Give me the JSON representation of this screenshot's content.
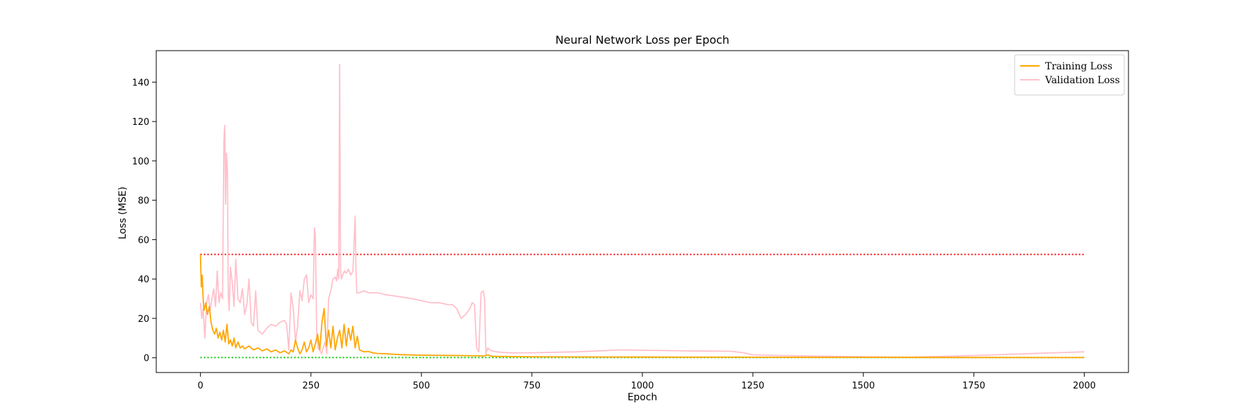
{
  "chart_data": {
    "type": "line",
    "title": "Neural Network Loss per Epoch",
    "xlabel": "Epoch",
    "ylabel": "Loss (MSE)",
    "xlim": [
      -100,
      2100
    ],
    "ylim": [
      -7.5,
      156
    ],
    "xticks": [
      0,
      250,
      500,
      750,
      1000,
      1250,
      1500,
      1750,
      2000
    ],
    "yticks": [
      0,
      20,
      40,
      60,
      80,
      100,
      120,
      140
    ],
    "grid": false,
    "legend_position": "top-right",
    "series": [
      {
        "name": "Training Loss",
        "color": "#ffa500",
        "x": [
          0,
          2,
          4,
          6,
          8,
          12,
          16,
          20,
          24,
          28,
          32,
          36,
          40,
          44,
          48,
          52,
          56,
          60,
          64,
          68,
          72,
          76,
          80,
          85,
          90,
          95,
          100,
          110,
          120,
          130,
          140,
          150,
          160,
          170,
          180,
          190,
          200,
          205,
          210,
          215,
          220,
          225,
          230,
          235,
          240,
          245,
          250,
          255,
          260,
          265,
          270,
          275,
          280,
          285,
          290,
          295,
          300,
          305,
          310,
          315,
          320,
          325,
          330,
          335,
          340,
          345,
          350,
          355,
          360,
          370,
          380,
          390,
          400,
          420,
          450,
          480,
          500,
          550,
          600,
          630,
          640,
          650,
          660,
          700,
          750,
          800,
          900,
          1000,
          1100,
          1200,
          1300,
          1400,
          1500,
          1600,
          1700,
          1800,
          1900,
          2000
        ],
        "y": [
          52.5,
          36,
          42,
          30,
          24,
          28,
          22,
          26,
          18,
          14,
          12,
          15,
          10,
          13,
          9,
          14,
          8,
          17,
          7,
          9,
          6,
          10,
          5,
          8,
          5,
          6,
          4.5,
          6,
          4,
          5,
          3.5,
          4.5,
          3,
          4,
          2.5,
          3.5,
          2,
          4,
          3,
          9,
          5,
          2,
          4,
          8,
          3,
          5,
          9,
          3,
          7,
          12,
          4,
          18,
          25,
          6,
          14,
          5,
          16,
          4,
          10,
          14,
          5,
          17,
          6,
          15,
          9,
          16,
          5,
          11,
          4,
          3,
          3.2,
          2.5,
          2.2,
          2,
          1.6,
          1.4,
          1.3,
          1.2,
          1.1,
          1.0,
          0.8,
          1.5,
          0.7,
          0.6,
          0.5,
          0.45,
          0.4,
          0.35,
          0.3,
          0.28,
          0.25,
          0.22,
          0.2,
          0.18,
          0.16,
          0.15,
          0.12,
          0.1
        ]
      },
      {
        "name": "Validation Loss",
        "color": "#ffc0cb",
        "x": [
          0,
          3,
          6,
          10,
          14,
          18,
          22,
          26,
          30,
          34,
          38,
          42,
          46,
          50,
          53,
          55,
          57,
          59,
          61,
          63,
          65,
          68,
          72,
          76,
          80,
          85,
          90,
          95,
          100,
          105,
          110,
          115,
          120,
          125,
          130,
          140,
          150,
          160,
          170,
          180,
          190,
          195,
          200,
          205,
          210,
          215,
          220,
          225,
          230,
          235,
          240,
          245,
          250,
          255,
          258,
          260,
          263,
          266,
          270,
          274,
          278,
          282,
          286,
          290,
          295,
          300,
          305,
          308,
          311,
          313,
          315,
          317,
          319,
          322,
          326,
          330,
          335,
          340,
          345,
          350,
          352,
          354,
          357,
          360,
          370,
          380,
          400,
          420,
          450,
          480,
          500,
          520,
          540,
          560,
          570,
          580,
          590,
          600,
          610,
          615,
          620,
          625,
          630,
          635,
          640,
          643,
          646,
          650,
          655,
          660,
          670,
          680,
          700,
          750,
          800,
          850,
          900,
          950,
          1000,
          1100,
          1200,
          1230,
          1250,
          1300,
          1400,
          1500,
          1600,
          1700,
          1800,
          1900,
          2000
        ],
        "y": [
          28,
          20,
          25,
          10,
          28,
          32,
          24,
          30,
          35,
          26,
          44,
          28,
          33,
          30,
          110,
          118,
          78,
          104,
          95,
          32,
          24,
          46,
          38,
          26,
          50,
          30,
          28,
          35,
          22,
          27,
          40,
          18,
          16,
          34,
          14,
          12,
          15,
          17,
          16,
          18,
          19,
          17,
          4,
          33,
          25,
          8,
          16,
          34,
          29,
          40,
          42,
          28,
          32,
          30,
          66,
          62,
          14,
          5,
          4,
          2,
          5,
          8,
          2,
          30,
          34,
          40,
          41,
          39,
          45,
          40,
          149,
          45,
          40,
          42,
          44,
          43,
          45,
          42,
          44,
          72,
          45,
          33,
          33,
          33,
          34,
          33,
          33,
          32,
          31,
          30,
          29,
          28,
          28,
          27,
          27,
          25,
          20,
          22,
          25,
          28,
          27,
          5,
          3,
          33,
          34,
          30,
          2,
          5,
          4,
          3.5,
          3,
          2.8,
          2.5,
          2.5,
          2.8,
          3,
          3.5,
          4,
          3.8,
          3.5,
          3.3,
          2.5,
          1.5,
          1.2,
          0.8,
          0.5,
          0.3,
          0.8,
          1.5,
          2.3,
          3
        ]
      },
      {
        "name": "",
        "color": "#ff0000",
        "style": "dotted",
        "x": [
          0,
          2000
        ],
        "y": [
          52.5,
          52.5
        ]
      },
      {
        "name": "",
        "color": "#00cc00",
        "style": "dotted",
        "x": [
          0,
          2000
        ],
        "y": [
          0.1,
          0.1
        ]
      }
    ]
  }
}
